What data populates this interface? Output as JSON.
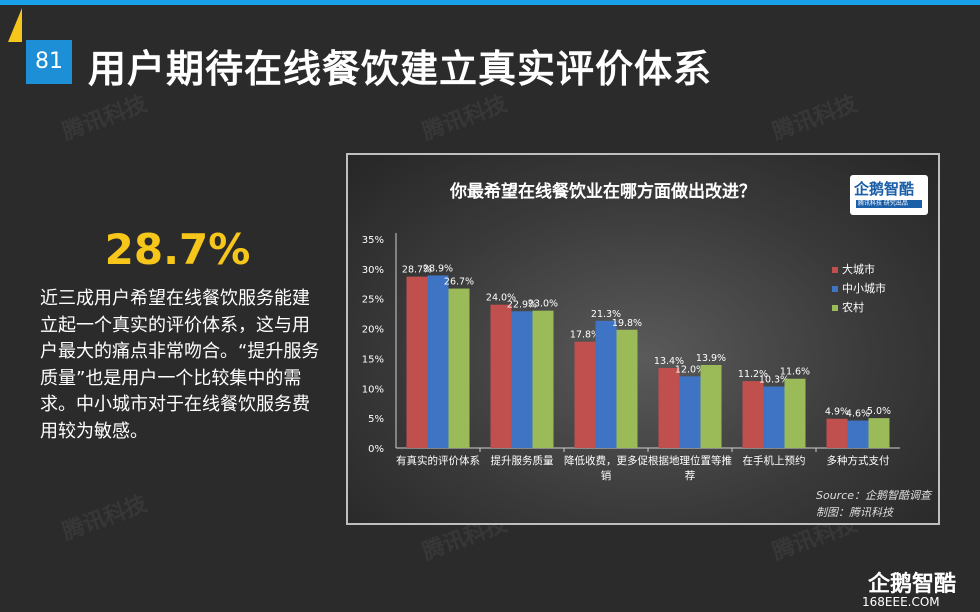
{
  "page": {
    "number": "81",
    "title": "用户期待在线餐饮建立真实评价体系",
    "watermark": "腾讯科技",
    "highlight": "28.7%",
    "description": "近三成用户希望在线餐饮服务能建立起一个真实的评价体系，这与用户最大的痛点非常吻合。“提升服务质量”也是用户一个比较集中的需求。中小城市对于在线餐饮服务费用较为敏感。",
    "brand": "企鹅智酷",
    "brand_url": "168EEE.COM"
  },
  "logo": {
    "name": "企鹅智酷",
    "sub": "腾讯科技  研究出品"
  },
  "colors": {
    "bg": "#2b2b2b",
    "accent": "#f6c61a",
    "blue": "#1d8fd6"
  },
  "chart_data": {
    "type": "bar",
    "title": "你最希望在线餐饮业在哪方面做出改进？",
    "categories": [
      "有真实的评价体系",
      "提升服务质量",
      "降低收费，更多促销",
      "根据地理位置等推荐",
      "在手机上预约",
      "多种方式支付"
    ],
    "category_lines": [
      [
        "有真实的评价体系"
      ],
      [
        "提升服务质量"
      ],
      [
        "降低收费，更多促",
        "销"
      ],
      [
        "根据地理位置等推",
        "荐"
      ],
      [
        "在手机上预约"
      ],
      [
        "多种方式支付"
      ]
    ],
    "series": [
      {
        "name": "大城市",
        "color": "#c0504d",
        "values": [
          28.7,
          24.0,
          17.8,
          13.4,
          11.2,
          4.9
        ]
      },
      {
        "name": "中小城市",
        "color": "#3f74c4",
        "values": [
          28.9,
          22.9,
          21.3,
          12.0,
          10.3,
          4.6
        ]
      },
      {
        "name": "农村",
        "color": "#9bbb59",
        "values": [
          26.7,
          23.0,
          19.8,
          13.9,
          11.6,
          5.0
        ]
      }
    ],
    "ylim": [
      0,
      35
    ],
    "yticks": [
      "0%",
      "5%",
      "10%",
      "15%",
      "20%",
      "25%",
      "30%",
      "35%"
    ],
    "legend": "right",
    "grid": false,
    "source": "Source：企鹅智酷调查",
    "credit": "制图：腾讯科技"
  }
}
